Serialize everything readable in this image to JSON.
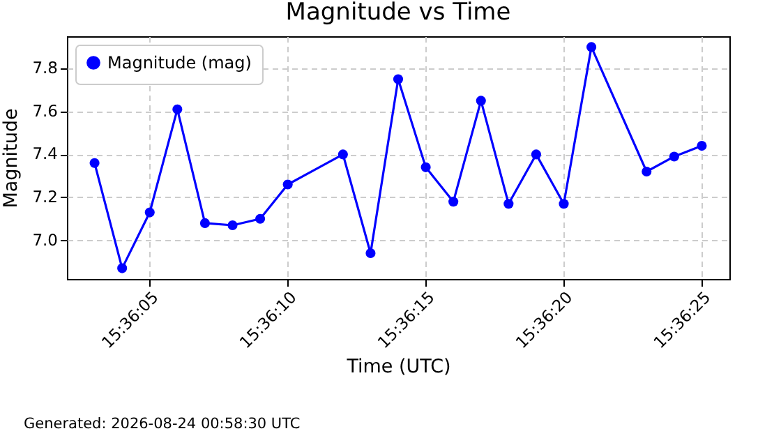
{
  "chart_data": {
    "type": "line",
    "title": "Magnitude vs Time",
    "xlabel": "Time (UTC)",
    "ylabel": "Magnitude",
    "x": [
      "2026-08-24T15:36:03",
      "2026-08-24T15:36:04",
      "2026-08-24T15:36:05",
      "2026-08-24T15:36:06",
      "2026-08-24T15:36:07",
      "2026-08-24T15:36:08",
      "2026-08-24T15:36:09",
      "2026-08-24T15:36:10",
      "2026-08-24T15:36:12",
      "2026-08-24T15:36:13",
      "2026-08-24T15:36:14",
      "2026-08-24T15:36:15",
      "2026-08-24T15:36:16",
      "2026-08-24T15:36:17",
      "2026-08-24T15:36:18",
      "2026-08-24T15:36:19",
      "2026-08-24T15:36:20",
      "2026-08-24T15:36:21",
      "2026-08-24T15:36:23",
      "2026-08-24T15:36:24",
      "2026-08-24T15:36:25"
    ],
    "series": [
      {
        "name": "Magnitude (mag)",
        "color": "#0000ff",
        "values": [
          7.36,
          6.87,
          7.13,
          7.61,
          7.08,
          7.07,
          7.1,
          7.26,
          7.4,
          6.94,
          7.75,
          7.34,
          7.18,
          7.65,
          7.17,
          7.4,
          7.17,
          7.9,
          7.32,
          7.39,
          7.44
        ]
      }
    ],
    "xlim": [
      "2026-08-24T15:36:02",
      "2026-08-24T15:36:26"
    ],
    "xticks": [
      {
        "value": "2026-08-24T15:36:05",
        "label": "15:36:05"
      },
      {
        "value": "2026-08-24T15:36:10",
        "label": "15:36:10"
      },
      {
        "value": "2026-08-24T15:36:15",
        "label": "15:36:15"
      },
      {
        "value": "2026-08-24T15:36:20",
        "label": "15:36:20"
      },
      {
        "value": "2026-08-24T15:36:25",
        "label": "15:36:25"
      }
    ],
    "ylim": [
      6.82,
      7.95
    ],
    "yticks": [
      {
        "value": 7.0,
        "label": "7.0"
      },
      {
        "value": 7.2,
        "label": "7.2"
      },
      {
        "value": 7.4,
        "label": "7.4"
      },
      {
        "value": 7.6,
        "label": "7.6"
      },
      {
        "value": 7.8,
        "label": "7.8"
      }
    ],
    "grid": true,
    "legend": "top left",
    "marker": "circle",
    "line_style": "solid",
    "annotations": [
      "Generated: 2026-08-24 00:58:30 UTC"
    ]
  }
}
